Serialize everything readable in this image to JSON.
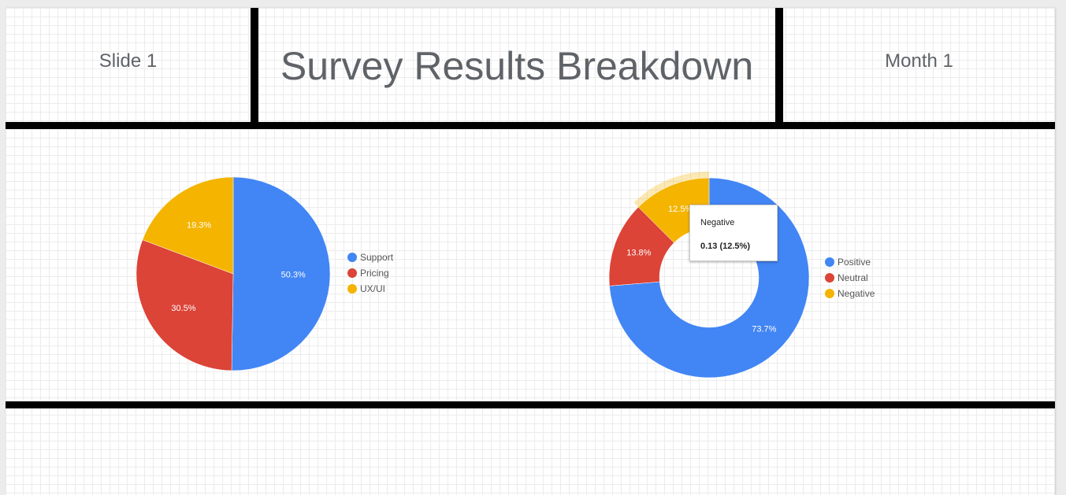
{
  "header": {
    "left": "Slide 1",
    "title": "Survey Results Breakdown",
    "right": "Month 1"
  },
  "chart_data": [
    {
      "type": "pie",
      "categories": [
        "Support",
        "Pricing",
        "UX/UI"
      ],
      "values": [
        50.3,
        30.5,
        19.3
      ],
      "labels": [
        "50.3%",
        "30.5%",
        "19.3%"
      ],
      "colors": [
        "#4285f4",
        "#db4437",
        "#f4b400"
      ],
      "legend_position": "right"
    },
    {
      "type": "pie",
      "donut": true,
      "categories": [
        "Positive",
        "Neutral",
        "Negative"
      ],
      "values": [
        73.7,
        13.8,
        12.5
      ],
      "labels": [
        "73.7%",
        "13.8%",
        "12.5%"
      ],
      "colors": [
        "#4285f4",
        "#db4437",
        "#f4b400"
      ],
      "legend_position": "right",
      "highlighted": "Negative",
      "tooltip": {
        "title": "Negative",
        "value": "0.13 (12.5%)"
      }
    }
  ]
}
